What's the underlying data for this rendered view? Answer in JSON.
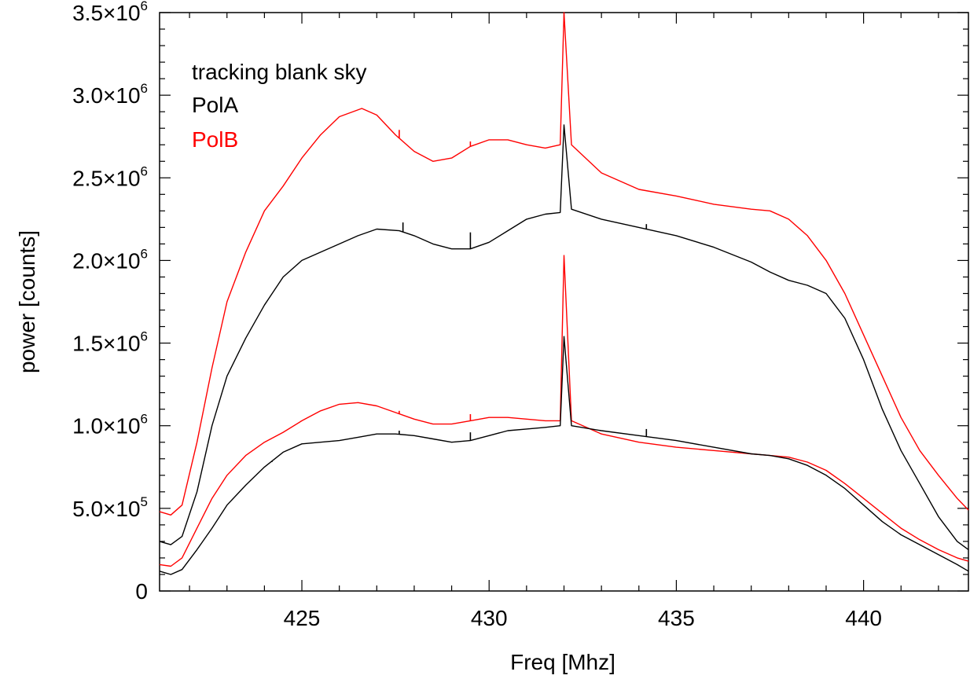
{
  "chart_data": {
    "type": "line",
    "title": "",
    "xlabel": "Freq [Mhz]",
    "ylabel": "power [counts]",
    "xlim": [
      421.2,
      442.8
    ],
    "ylim": [
      0,
      3500000
    ],
    "x_ticks": [
      425,
      430,
      435,
      440
    ],
    "y_ticks": [
      {
        "value": 0,
        "mantissa": "0",
        "exp": ""
      },
      {
        "value": 500000,
        "mantissa": "5.0×10",
        "exp": "5"
      },
      {
        "value": 1000000,
        "mantissa": "1.0×10",
        "exp": "6"
      },
      {
        "value": 1500000,
        "mantissa": "1.5×10",
        "exp": "6"
      },
      {
        "value": 2000000,
        "mantissa": "2.0×10",
        "exp": "6"
      },
      {
        "value": 2500000,
        "mantissa": "2.5×10",
        "exp": "6"
      },
      {
        "value": 3000000,
        "mantissa": "3.0×10",
        "exp": "6"
      },
      {
        "value": 3500000,
        "mantissa": "3.5×10",
        "exp": "6"
      }
    ],
    "grid": false,
    "legend": {
      "placement": "top-left",
      "entries": [
        {
          "label": "tracking blank sky",
          "color": "#000000"
        },
        {
          "label": "PolA",
          "color": "#000000"
        },
        {
          "label": "PolB",
          "color": "#ff0000"
        }
      ]
    },
    "series": [
      {
        "color": "#ff0000",
        "x": [
          421.2,
          421.5,
          421.8,
          422.2,
          422.6,
          423.0,
          423.5,
          424.0,
          424.5,
          425.0,
          425.5,
          426.0,
          426.6,
          427.0,
          427.5,
          428.0,
          428.5,
          429.0,
          429.5,
          430.0,
          430.5,
          431.0,
          431.5,
          431.9,
          432.0,
          432.2,
          433.0,
          434.0,
          435.0,
          436.0,
          437.0,
          437.5,
          438.0,
          438.5,
          439.0,
          439.5,
          440.0,
          440.5,
          441.0,
          441.5,
          442.0,
          442.5,
          442.8
        ],
        "y": [
          480000,
          460000,
          520000,
          900000,
          1350000,
          1750000,
          2050000,
          2300000,
          2450000,
          2620000,
          2760000,
          2870000,
          2920000,
          2880000,
          2760000,
          2660000,
          2600000,
          2620000,
          2690000,
          2730000,
          2730000,
          2700000,
          2680000,
          2700000,
          3500000,
          2700000,
          2530000,
          2430000,
          2390000,
          2340000,
          2310000,
          2300000,
          2250000,
          2150000,
          2000000,
          1800000,
          1550000,
          1300000,
          1050000,
          850000,
          700000,
          560000,
          490000
        ],
        "spikes": [
          {
            "x": 427.6,
            "y": 2790000
          },
          {
            "x": 429.5,
            "y": 2720000
          }
        ]
      },
      {
        "color": "#000000",
        "x": [
          421.2,
          421.5,
          421.8,
          422.2,
          422.6,
          423.0,
          423.5,
          424.0,
          424.5,
          425.0,
          425.5,
          426.0,
          426.5,
          427.0,
          427.6,
          428.0,
          428.5,
          429.0,
          429.5,
          430.0,
          430.5,
          431.0,
          431.5,
          431.9,
          432.0,
          432.2,
          433.0,
          434.0,
          435.0,
          436.0,
          437.0,
          437.5,
          438.0,
          438.5,
          439.0,
          439.5,
          440.0,
          440.5,
          441.0,
          441.5,
          442.0,
          442.5,
          442.8
        ],
        "y": [
          300000,
          280000,
          330000,
          600000,
          1000000,
          1300000,
          1530000,
          1730000,
          1900000,
          2000000,
          2050000,
          2100000,
          2150000,
          2190000,
          2180000,
          2150000,
          2100000,
          2070000,
          2070000,
          2110000,
          2180000,
          2250000,
          2280000,
          2290000,
          2820000,
          2310000,
          2250000,
          2200000,
          2150000,
          2080000,
          1990000,
          1930000,
          1880000,
          1850000,
          1800000,
          1650000,
          1400000,
          1100000,
          850000,
          650000,
          450000,
          300000,
          250000
        ],
        "spikes": [
          {
            "x": 427.7,
            "y": 2230000
          },
          {
            "x": 429.5,
            "y": 2170000
          },
          {
            "x": 434.2,
            "y": 2220000
          }
        ]
      },
      {
        "color": "#ff0000",
        "x": [
          421.2,
          421.5,
          421.8,
          422.2,
          422.6,
          423.0,
          423.5,
          424.0,
          424.5,
          425.0,
          425.5,
          426.0,
          426.5,
          427.0,
          427.5,
          428.0,
          428.5,
          429.0,
          429.5,
          430.0,
          430.5,
          431.0,
          431.5,
          431.9,
          432.0,
          432.2,
          433.0,
          434.0,
          435.0,
          436.0,
          437.0,
          437.5,
          438.0,
          438.5,
          439.0,
          439.5,
          440.0,
          440.5,
          441.0,
          441.5,
          442.0,
          442.5,
          442.8
        ],
        "y": [
          160000,
          150000,
          200000,
          380000,
          560000,
          700000,
          820000,
          900000,
          960000,
          1030000,
          1090000,
          1130000,
          1140000,
          1120000,
          1080000,
          1040000,
          1010000,
          1010000,
          1030000,
          1050000,
          1050000,
          1040000,
          1030000,
          1030000,
          2030000,
          1030000,
          950000,
          900000,
          870000,
          850000,
          830000,
          820000,
          810000,
          780000,
          730000,
          650000,
          560000,
          470000,
          380000,
          310000,
          250000,
          200000,
          180000
        ],
        "spikes": [
          {
            "x": 429.5,
            "y": 1070000
          },
          {
            "x": 427.6,
            "y": 1090000
          }
        ]
      },
      {
        "color": "#000000",
        "x": [
          421.2,
          421.5,
          421.8,
          422.2,
          422.6,
          423.0,
          423.5,
          424.0,
          424.5,
          425.0,
          425.5,
          426.0,
          426.5,
          427.0,
          427.5,
          428.0,
          428.5,
          429.0,
          429.5,
          430.0,
          430.5,
          431.0,
          431.5,
          431.9,
          432.0,
          432.2,
          433.0,
          434.0,
          435.0,
          436.0,
          437.0,
          437.5,
          438.0,
          438.5,
          439.0,
          439.5,
          440.0,
          440.5,
          441.0,
          441.5,
          442.0,
          442.5,
          442.8
        ],
        "y": [
          120000,
          100000,
          130000,
          250000,
          380000,
          520000,
          640000,
          750000,
          840000,
          890000,
          900000,
          910000,
          930000,
          950000,
          950000,
          940000,
          920000,
          900000,
          910000,
          940000,
          970000,
          980000,
          990000,
          1000000,
          1540000,
          1000000,
          970000,
          940000,
          910000,
          870000,
          830000,
          820000,
          800000,
          760000,
          700000,
          620000,
          520000,
          420000,
          340000,
          280000,
          220000,
          160000,
          120000
        ],
        "spikes": [
          {
            "x": 427.6,
            "y": 970000
          },
          {
            "x": 429.5,
            "y": 960000
          },
          {
            "x": 434.2,
            "y": 980000
          },
          {
            "x": 424.2,
            "y": 780000
          }
        ]
      }
    ]
  }
}
